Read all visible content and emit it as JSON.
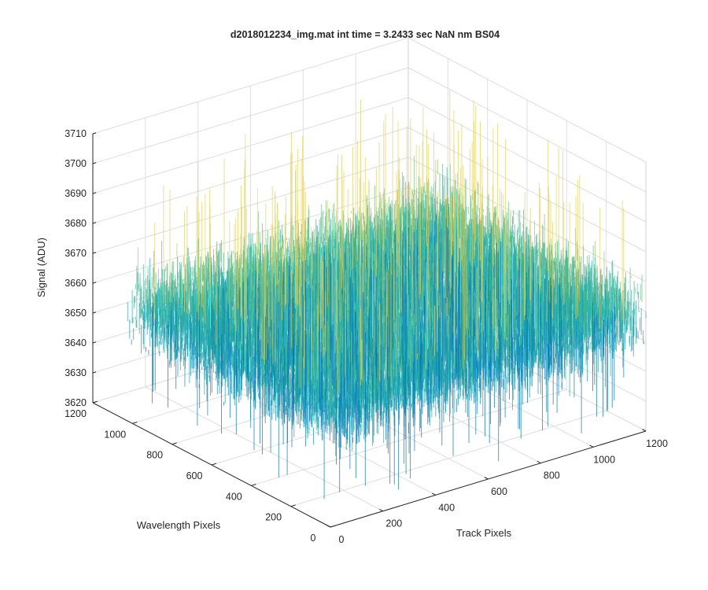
{
  "chart_data": {
    "type": "surface",
    "title": "d2018012234_img.mat int time = 3.2433 sec  NaN nm BS04",
    "xlabel": "Track Pixels",
    "ylabel": "Wavelength Pixels",
    "zlabel": "Signal (ADU)",
    "xlim": [
      0,
      1200
    ],
    "ylim": [
      0,
      1200
    ],
    "zlim": [
      3620,
      3710
    ],
    "xticks": [
      "0",
      "200",
      "400",
      "600",
      "800",
      "1000",
      "1200"
    ],
    "yticks": [
      "0",
      "200",
      "400",
      "600",
      "800",
      "1000",
      "1200"
    ],
    "zticks": [
      "3620",
      "3630",
      "3640",
      "3650",
      "3660",
      "3670",
      "3680",
      "3690",
      "3700",
      "3710"
    ],
    "data_extent": {
      "x": [
        0,
        1200
      ],
      "y": [
        0,
        1024
      ]
    },
    "signal_mean": 3658,
    "signal_typical_range": [
      3640,
      3680
    ],
    "signal_extremes": [
      3622,
      3705
    ],
    "grid": true,
    "colormap": "parula",
    "colors": {
      "low": "#0072bd",
      "mid": "#26b6a8",
      "high": "#e6d253"
    }
  }
}
